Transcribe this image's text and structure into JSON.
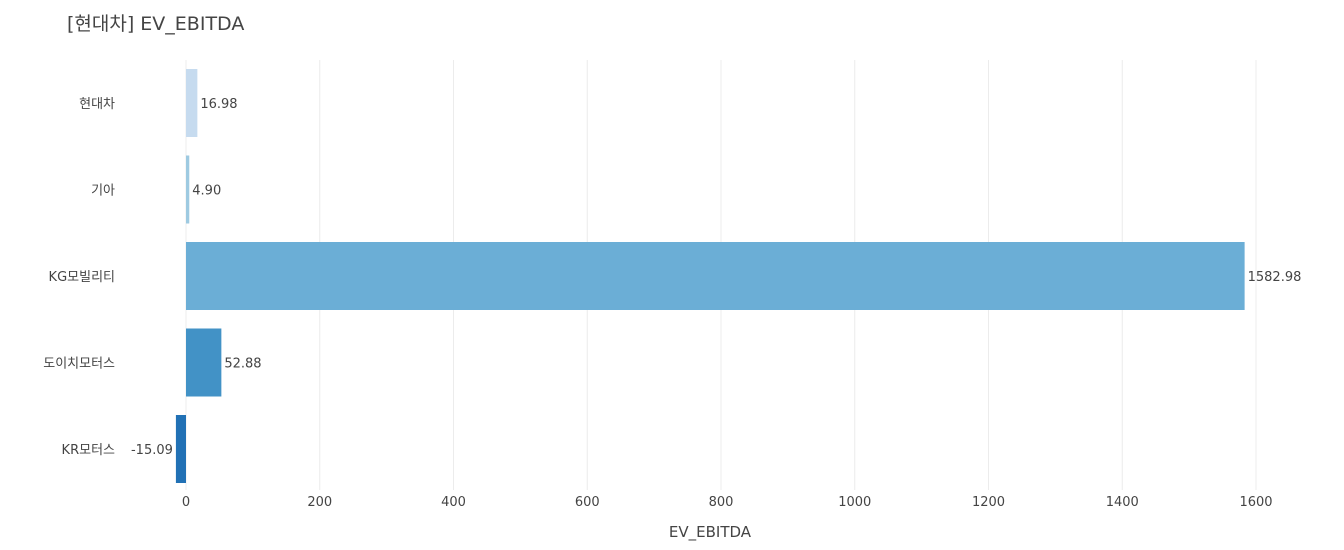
{
  "chart_data": {
    "type": "bar",
    "orientation": "horizontal",
    "title": "[현대차] EV_EBITDA",
    "xlabel": "EV_EBITDA",
    "ylabel": "",
    "xlim": [
      -15.09,
      1610
    ],
    "xticks": [
      0,
      200,
      400,
      600,
      800,
      1000,
      1200,
      1400,
      1600
    ],
    "categories": [
      "현대차",
      "기아",
      "KG모빌리티",
      "도이치모터스",
      "KR모터스"
    ],
    "values": [
      16.98,
      4.9,
      1582.98,
      52.88,
      -15.09
    ],
    "value_labels": [
      "16.98",
      "4.90",
      "1582.98",
      "52.88",
      "-15.09"
    ],
    "colors": [
      "#c6dbef",
      "#9ecae1",
      "#6baed6",
      "#4292c6",
      "#2171b5"
    ],
    "grid": true,
    "legend": "none"
  }
}
